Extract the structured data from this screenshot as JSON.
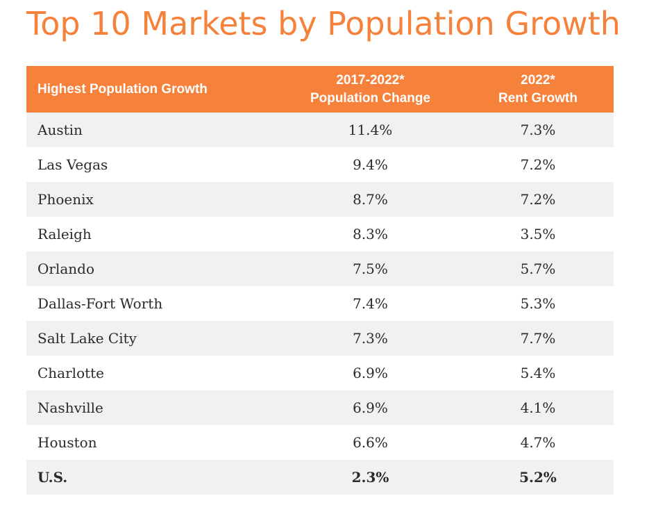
{
  "title": "Top 10 Markets by Population Growth",
  "colors": {
    "accent": "#f5813b",
    "stripe": "#f1f1f1"
  },
  "table": {
    "headers": {
      "name": "Highest Population Growth",
      "pop_line1": "2017-2022*",
      "pop_line2": "Population Change",
      "rent_line1": "2022*",
      "rent_line2": "Rent Growth"
    },
    "rows": [
      {
        "market": "Austin",
        "population_change": "11.4%",
        "rent_growth": "7.3%"
      },
      {
        "market": "Las Vegas",
        "population_change": "9.4%",
        "rent_growth": "7.2%"
      },
      {
        "market": "Phoenix",
        "population_change": "8.7%",
        "rent_growth": "7.2%"
      },
      {
        "market": "Raleigh",
        "population_change": "8.3%",
        "rent_growth": "3.5%"
      },
      {
        "market": "Orlando",
        "population_change": "7.5%",
        "rent_growth": "5.7%"
      },
      {
        "market": "Dallas-Fort Worth",
        "population_change": "7.4%",
        "rent_growth": "5.3%"
      },
      {
        "market": "Salt Lake City",
        "population_change": "7.3%",
        "rent_growth": "7.7%"
      },
      {
        "market": "Charlotte",
        "population_change": "6.9%",
        "rent_growth": "5.4%"
      },
      {
        "market": "Nashville",
        "population_change": "6.9%",
        "rent_growth": "4.1%"
      },
      {
        "market": "Houston",
        "population_change": "6.6%",
        "rent_growth": "4.7%"
      },
      {
        "market": "U.S.",
        "population_change": "2.3%",
        "rent_growth": "5.2%"
      }
    ]
  }
}
